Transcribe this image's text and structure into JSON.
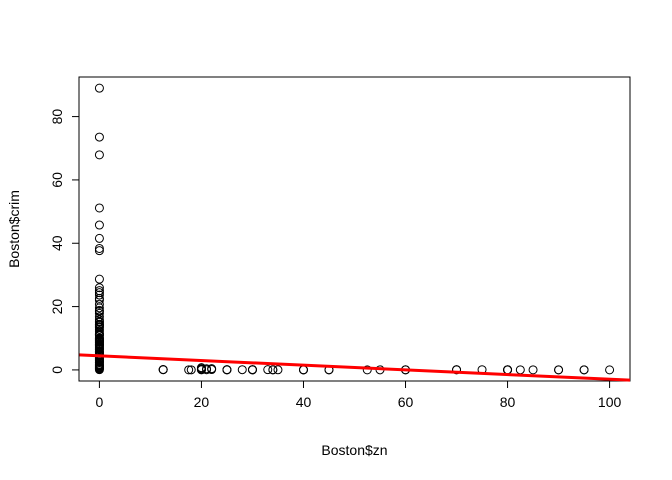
{
  "chart_data": {
    "type": "scatter",
    "title": "",
    "xlabel": "Boston$zn",
    "ylabel": "Boston$crim",
    "xlim": [
      -4,
      104
    ],
    "ylim": [
      -3.5,
      92.5
    ],
    "xticks": [
      0,
      20,
      40,
      60,
      80,
      100
    ],
    "yticks": [
      0,
      20,
      40,
      60,
      80
    ],
    "grid": false,
    "marker": "open-circle",
    "points": {
      "x": [
        0,
        0,
        0,
        0,
        0,
        0,
        0,
        0,
        0,
        0,
        0,
        0,
        0,
        0,
        0,
        0,
        0,
        0,
        0,
        0,
        0,
        0,
        0,
        0,
        0,
        0,
        0,
        0,
        0,
        0,
        0,
        0,
        0,
        0,
        0,
        0,
        0,
        0,
        0,
        0,
        0,
        0,
        0,
        0,
        0,
        0,
        0,
        0,
        0,
        0,
        0,
        0,
        0,
        0,
        0,
        0,
        0,
        0,
        0,
        0,
        0,
        0,
        0,
        0,
        0,
        0,
        0,
        0,
        0,
        0,
        0,
        0,
        0,
        0,
        0,
        0,
        0,
        0,
        0,
        0,
        12.5,
        12.5,
        12.5,
        17.5,
        18,
        20,
        20,
        20,
        20,
        20,
        21,
        21,
        22,
        22,
        25,
        25,
        25,
        28,
        30,
        30,
        30,
        33,
        34,
        34,
        35,
        40,
        40,
        40,
        45,
        45,
        52.5,
        55,
        60,
        60,
        70,
        70,
        75,
        80,
        80,
        80,
        80,
        82.5,
        85,
        90,
        90,
        95,
        95,
        100
      ],
      "y": [
        88.98,
        73.53,
        67.92,
        51.14,
        45.75,
        41.53,
        38.35,
        37.66,
        28.66,
        25.95,
        25.05,
        24.39,
        23.65,
        22.6,
        22.05,
        20.72,
        19.61,
        18.81,
        18.5,
        17.87,
        16.81,
        15.86,
        15.29,
        15.02,
        14.43,
        14.33,
        14.05,
        13.68,
        13.36,
        12.8,
        12.25,
        11.58,
        11.16,
        11.11,
        10.83,
        10.06,
        9.92,
        9.72,
        9.51,
        9.33,
        9.19,
        8.98,
        8.79,
        8.64,
        8.27,
        8.05,
        7.99,
        7.83,
        7.67,
        7.4,
        7.05,
        6.72,
        6.54,
        6.44,
        5.87,
        5.7,
        5.58,
        5.29,
        4.87,
        4.66,
        4.42,
        4.22,
        3.84,
        3.68,
        3.47,
        3.32,
        2.92,
        2.82,
        2.45,
        2.31,
        1.84,
        1.63,
        1.42,
        1.23,
        0.98,
        0.85,
        0.63,
        0.45,
        0.27,
        0.08,
        0.13,
        0.09,
        0.06,
        0.02,
        0.03,
        0.72,
        0.42,
        0.18,
        0.08,
        0.04,
        0.35,
        0.06,
        0.4,
        0.12,
        0.08,
        0.05,
        0.02,
        0.07,
        0.11,
        0.05,
        0.02,
        0.08,
        0.05,
        0.03,
        0.04,
        0.05,
        0.02,
        0.01,
        0.05,
        0.03,
        0.02,
        0.03,
        0.05,
        0.02,
        0.09,
        0.02,
        0.06,
        0.03,
        0.01,
        0.02,
        0.04,
        0.03,
        0.02,
        0.02,
        0.01,
        0.01,
        0.03,
        0.01
      ]
    },
    "regression_line": {
      "color": "#ff0000",
      "intercept": 4.45,
      "slope": -0.0739
    },
    "point_color": "#000000"
  }
}
